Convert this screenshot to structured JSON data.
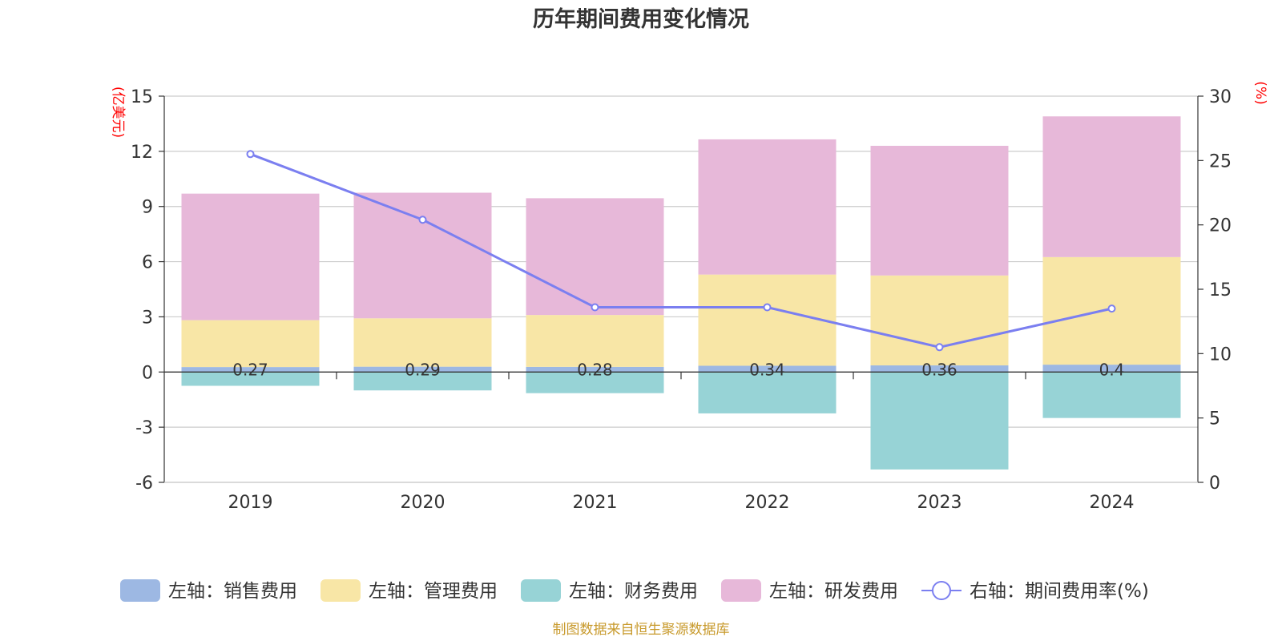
{
  "chart_data": {
    "type": "bar",
    "title": "历年期间费用变化情况",
    "categories": [
      "2019",
      "2020",
      "2021",
      "2022",
      "2023",
      "2024"
    ],
    "left_axis": {
      "unit": "(亿美元)",
      "ylim": [
        -6,
        15
      ],
      "ticks": [
        15,
        12,
        9,
        6,
        3,
        0,
        -3,
        -6
      ]
    },
    "right_axis": {
      "unit": "(%)",
      "ylim": [
        0,
        30
      ],
      "ticks": [
        30,
        25,
        20,
        15,
        10,
        5,
        0
      ]
    },
    "series": [
      {
        "name": "左轴：销售费用",
        "type": "bar",
        "axis": "left",
        "color": "#9db8e3",
        "values": [
          0.27,
          0.29,
          0.28,
          0.34,
          0.36,
          0.4
        ],
        "labels": [
          "0.27",
          "0.29",
          "0.28",
          "0.34",
          "0.36",
          "0.4"
        ]
      },
      {
        "name": "左轴：管理费用",
        "type": "bar",
        "axis": "left",
        "color": "#f8e6a6",
        "values": [
          2.55,
          2.63,
          2.82,
          4.96,
          4.89,
          5.85
        ]
      },
      {
        "name": "左轴：财务费用",
        "type": "bar",
        "axis": "left",
        "color": "#97d3d6",
        "values": [
          -0.75,
          -1.0,
          -1.15,
          -2.25,
          -5.3,
          -2.5
        ]
      },
      {
        "name": "左轴：研发费用",
        "type": "bar",
        "axis": "left",
        "color": "#e7b8d9",
        "values": [
          6.88,
          6.83,
          6.35,
          7.35,
          7.05,
          7.65
        ]
      },
      {
        "name": "右轴：期间费用率(%)",
        "type": "line",
        "axis": "right",
        "color": "#7b7ff0",
        "values": [
          25.5,
          20.4,
          13.6,
          13.6,
          10.5,
          13.5
        ]
      }
    ],
    "grid": true,
    "legend": "bottom"
  },
  "source": "制图数据来自恒生聚源数据库"
}
